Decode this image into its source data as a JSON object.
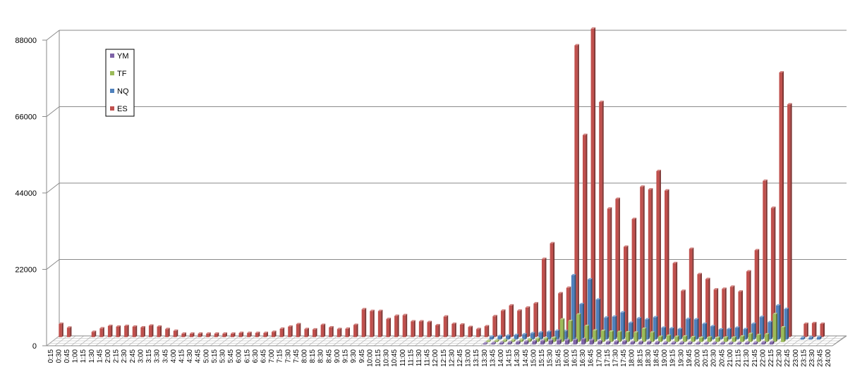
{
  "chart_data": {
    "type": "bar",
    "title": "",
    "xlabel": "",
    "ylabel": "",
    "ylim": [
      0,
      88000
    ],
    "yticks": [
      "0",
      "22000",
      "44000",
      "66000",
      "88000"
    ],
    "grid": true,
    "legend_position": "top-left",
    "style": "3d-clustered-depth",
    "categories": [
      "0:15",
      "0:30",
      "0:45",
      "1:00",
      "1:15",
      "1:30",
      "1:45",
      "2:00",
      "2:15",
      "2:30",
      "2:45",
      "3:00",
      "3:15",
      "3:30",
      "3:45",
      "4:00",
      "4:15",
      "4:30",
      "4:45",
      "5:00",
      "5:15",
      "5:30",
      "5:45",
      "6:00",
      "6:15",
      "6:30",
      "6:45",
      "7:00",
      "7:15",
      "7:30",
      "7:45",
      "8:00",
      "8:15",
      "8:30",
      "8:45",
      "9:00",
      "9:15",
      "9:30",
      "9:45",
      "10:00",
      "10:15",
      "10:30",
      "10:45",
      "11:00",
      "11:15",
      "11:30",
      "11:45",
      "12:00",
      "12:15",
      "12:30",
      "12:45",
      "13:00",
      "13:15",
      "13:30",
      "13:45",
      "14:00",
      "14:15",
      "14:30",
      "14:45",
      "15:00",
      "15:15",
      "15:30",
      "15:45",
      "16:00",
      "16:15",
      "16:30",
      "16:45",
      "17:00",
      "17:15",
      "17:30",
      "17:45",
      "18:00",
      "18:15",
      "18:30",
      "18:45",
      "19:00",
      "19:15",
      "19:30",
      "19:45",
      "20:00",
      "20:15",
      "20:30",
      "20:45",
      "21:00",
      "21:15",
      "21:30",
      "21:45",
      "22:00",
      "22:15",
      "22:30",
      "22:45",
      "23:00",
      "23:15",
      "23:30",
      "23:45",
      "24:00"
    ],
    "legend": [
      "YM",
      "TF",
      "NQ",
      "ES"
    ],
    "series": [
      {
        "name": "YM",
        "color": "#7e63a8",
        "values": [
          0,
          0,
          0,
          0,
          0,
          0,
          0,
          0,
          0,
          0,
          0,
          0,
          0,
          0,
          0,
          0,
          0,
          0,
          0,
          0,
          0,
          0,
          0,
          0,
          0,
          0,
          0,
          0,
          0,
          0,
          0,
          0,
          0,
          0,
          0,
          0,
          0,
          0,
          0,
          0,
          0,
          0,
          0,
          0,
          0,
          0,
          0,
          0,
          0,
          0,
          0,
          0,
          0,
          300,
          400,
          500,
          600,
          700,
          800,
          900,
          1000,
          1100,
          1200,
          1200,
          1300,
          1500,
          1200,
          900,
          700,
          800,
          900,
          700,
          700,
          700,
          600,
          500,
          500,
          500,
          500,
          400,
          400,
          400,
          400,
          400,
          400,
          500,
          500,
          600,
          700,
          0,
          0,
          0,
          0,
          0,
          0,
          0
        ]
      },
      {
        "name": "TF",
        "color": "#9bbb59",
        "values": [
          0,
          0,
          0,
          0,
          0,
          0,
          0,
          0,
          0,
          0,
          0,
          0,
          0,
          0,
          0,
          0,
          0,
          0,
          0,
          0,
          0,
          0,
          0,
          0,
          0,
          0,
          0,
          0,
          0,
          0,
          0,
          0,
          0,
          0,
          0,
          0,
          0,
          0,
          0,
          0,
          0,
          0,
          0,
          0,
          0,
          0,
          0,
          0,
          0,
          0,
          0,
          0,
          0,
          300,
          400,
          500,
          500,
          600,
          700,
          900,
          1000,
          1200,
          6500,
          6000,
          7900,
          4600,
          3300,
          3200,
          3000,
          2900,
          2800,
          2700,
          3800,
          2700,
          1500,
          1800,
          1500,
          1600,
          1400,
          1200,
          1300,
          1200,
          1300,
          1300,
          1600,
          2300,
          2000,
          2200,
          8000,
          4200,
          0,
          0,
          0,
          0,
          0,
          0
        ]
      },
      {
        "name": "NQ",
        "color": "#4f81bd",
        "values": [
          0,
          0,
          0,
          0,
          0,
          0,
          0,
          0,
          0,
          0,
          0,
          0,
          0,
          0,
          0,
          0,
          0,
          0,
          0,
          0,
          0,
          0,
          0,
          0,
          0,
          0,
          0,
          0,
          0,
          0,
          0,
          0,
          0,
          0,
          0,
          0,
          0,
          0,
          0,
          0,
          0,
          0,
          0,
          0,
          0,
          0,
          0,
          0,
          0,
          0,
          0,
          0,
          0,
          800,
          1000,
          1100,
          1300,
          1500,
          1800,
          2000,
          2200,
          2500,
          2400,
          18500,
          10200,
          17300,
          11500,
          6300,
          6600,
          7800,
          4800,
          6100,
          5800,
          6400,
          3400,
          3200,
          3000,
          5900,
          5800,
          4500,
          3800,
          2900,
          3000,
          3400,
          3000,
          4500,
          6500,
          5000,
          9800,
          8800,
          0,
          500,
          600,
          700,
          0,
          0
        ]
      },
      {
        "name": "ES",
        "color": "#c0504d",
        "values": [
          3800,
          2700,
          0,
          0,
          1500,
          2500,
          3200,
          3000,
          3200,
          3000,
          2800,
          3300,
          3000,
          2300,
          1800,
          1000,
          1000,
          1000,
          1000,
          1000,
          1000,
          1000,
          1200,
          1200,
          1200,
          1200,
          1500,
          2400,
          3000,
          3700,
          2300,
          2200,
          3500,
          2800,
          2300,
          2400,
          3500,
          8000,
          7500,
          7500,
          5200,
          6100,
          6300,
          4500,
          4500,
          4300,
          3400,
          5900,
          3800,
          3600,
          2900,
          2300,
          3100,
          6000,
          7600,
          9100,
          7600,
          8500,
          9700,
          22500,
          27000,
          12600,
          14200,
          84000,
          58200,
          88800,
          67700,
          37000,
          39800,
          26000,
          34000,
          43300,
          42500,
          47800,
          42200,
          21300,
          13300,
          25400,
          18100,
          16700,
          13700,
          13900,
          14500,
          13100,
          18900,
          25000,
          45000,
          37200,
          76200,
          67000,
          0,
          3800,
          4000,
          3800,
          0,
          0
        ]
      }
    ]
  }
}
